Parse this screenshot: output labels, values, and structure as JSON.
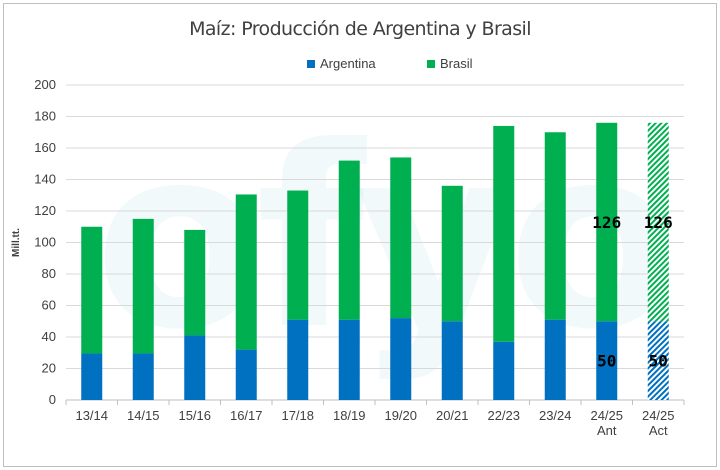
{
  "chart_data": {
    "type": "bar",
    "stacked": true,
    "title": "Maíz: Producción de Argentina y Brasil",
    "xlabel": "",
    "ylabel": "Mill.tt.",
    "ylim": [
      0,
      200
    ],
    "yticks": [
      0,
      20,
      40,
      60,
      80,
      100,
      120,
      140,
      160,
      180,
      200
    ],
    "grid": true,
    "legend_position": "top",
    "categories": [
      [
        "13/14"
      ],
      [
        "14/15"
      ],
      [
        "15/16"
      ],
      [
        "16/17"
      ],
      [
        "17/18"
      ],
      [
        "18/19"
      ],
      [
        "19/20"
      ],
      [
        "20/21"
      ],
      [
        "22/23"
      ],
      [
        "23/24"
      ],
      [
        "24/25",
        "Ant"
      ],
      [
        "24/25",
        "Act"
      ]
    ],
    "series": [
      {
        "name": "Argentina",
        "color": "#0070c0",
        "values": [
          29.5,
          29.5,
          41,
          32,
          51,
          51,
          52,
          50,
          37,
          51,
          50,
          50
        ]
      },
      {
        "name": "Brasil",
        "color": "#00b050",
        "values": [
          80.5,
          85.5,
          67,
          98.5,
          82,
          101,
          102,
          86,
          137,
          119,
          126,
          126
        ]
      }
    ],
    "hatched_category_index": 11,
    "data_labels": [
      {
        "category_index": 10,
        "series": "Brasil",
        "text": "126"
      },
      {
        "category_index": 10,
        "series": "Argentina",
        "text": "50"
      },
      {
        "category_index": 11,
        "series": "Brasil",
        "text": "126"
      },
      {
        "category_index": 11,
        "series": "Argentina",
        "text": "50"
      }
    ],
    "watermark": "ofyo",
    "colors": {
      "grid": "#d9d9d9",
      "axis_text": "#404040",
      "label_text": "#000000"
    }
  }
}
